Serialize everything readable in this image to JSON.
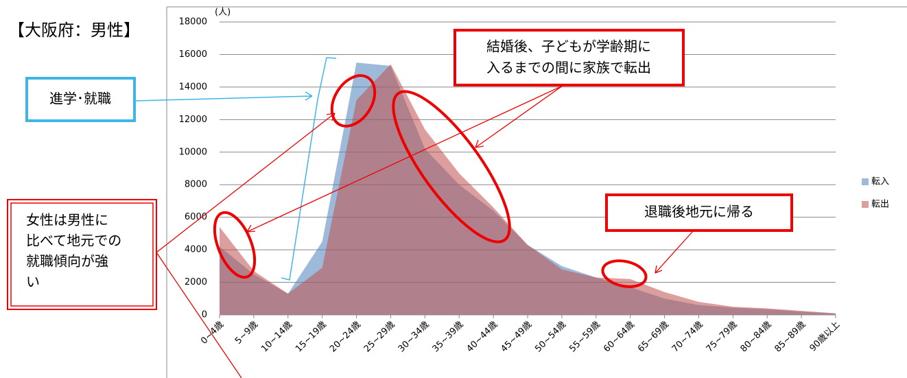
{
  "chart_data": {
    "type": "area",
    "title": "【大阪府：男性】",
    "y_label": "(人)",
    "categories": [
      "0~4歳",
      "5~9歳",
      "10~14歳",
      "15~19歳",
      "20~24歳",
      "25~29歳",
      "30~34歳",
      "35~39歳",
      "40~44歳",
      "45~49歳",
      "50~54歳",
      "55~59歳",
      "60~64歳",
      "65~69歳",
      "70~74歳",
      "75~79歳",
      "80~84歳",
      "85~89歳",
      "90歳以上"
    ],
    "series": [
      {
        "name": "転入",
        "color": "#4f81bd",
        "values": [
          4200,
          2500,
          1300,
          4500,
          15500,
          15300,
          10200,
          8000,
          6400,
          4300,
          3000,
          2300,
          1700,
          1000,
          600,
          450,
          350,
          200,
          80
        ]
      },
      {
        "name": "転出",
        "color": "#c0504d",
        "values": [
          5400,
          2700,
          1300,
          2900,
          13200,
          15400,
          11400,
          8700,
          6600,
          4300,
          2800,
          2300,
          2200,
          1400,
          800,
          500,
          400,
          250,
          100
        ]
      }
    ],
    "ylim": [
      0,
      18000
    ],
    "yticks": [
      0,
      2000,
      4000,
      6000,
      8000,
      10000,
      12000,
      14000,
      16000,
      18000
    ],
    "grid": true,
    "legend": "right",
    "annotations": [
      {
        "lines": [
          "進学･就職"
        ]
      },
      {
        "lines": [
          "女性は男性に",
          "比べて地元での",
          "就職傾向が強",
          "い"
        ]
      },
      {
        "lines": [
          "結婚後、子どもが学齢期に",
          "入るまでの間に家族で転出"
        ]
      },
      {
        "lines": [
          "退職後地元に帰る"
        ]
      }
    ]
  }
}
